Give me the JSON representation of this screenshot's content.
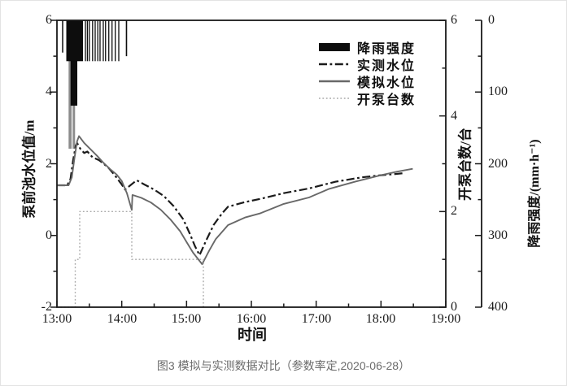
{
  "caption": "图3 模拟与实测数据对比（参数率定,2020-06-28）",
  "colors": {
    "axis": "#1a1a1a",
    "measured": "#1b1b1b",
    "simulated": "#686868",
    "pumps": "#a9a9a9",
    "rain": "#0d0d0d",
    "rain_light": "#8c8c8c"
  },
  "axes": {
    "x": {
      "title": "时间",
      "tick_labels": [
        "13:00",
        "14:00",
        "15:00",
        "16:00",
        "17:00",
        "18:00",
        "19:00"
      ],
      "tick_values": [
        0,
        1,
        2,
        3,
        4,
        5,
        6
      ],
      "minor_step": 0.5,
      "range": [
        0,
        6
      ]
    },
    "water": {
      "title": "泵前池水位值/m",
      "tick_labels": [
        "6",
        "4",
        "2",
        "0",
        "-2"
      ],
      "tick_values": [
        6,
        4,
        2,
        0,
        -2
      ],
      "range": [
        -2,
        6
      ]
    },
    "pumps": {
      "title": "开泵台数/台",
      "tick_labels": [
        "6",
        "4",
        "2",
        "0"
      ],
      "tick_values": [
        6,
        4,
        2,
        0
      ],
      "range": [
        0,
        6
      ]
    },
    "rain": {
      "title": "降雨强度/(mm·h⁻¹)",
      "tick_labels": [
        "0",
        "100",
        "200",
        "300",
        "400"
      ],
      "tick_values": [
        0,
        100,
        200,
        300,
        400
      ],
      "range": [
        0,
        400
      ],
      "inverted": true
    }
  },
  "legend": {
    "items": [
      {
        "label": "降雨强度",
        "type": "bar",
        "color": "#0d0d0d"
      },
      {
        "label": "实测水位",
        "type": "dashdot",
        "color": "#1b1b1b"
      },
      {
        "label": "模拟水位",
        "type": "solid",
        "color": "#686868"
      },
      {
        "label": "开泵台数",
        "type": "dotted",
        "color": "#a9a9a9"
      }
    ]
  },
  "chart_data": {
    "type": "line",
    "x_unit": "hours after 13:00",
    "title": "模拟与实测数据对比",
    "xlabel": "时间",
    "ylabel_left": "泵前池水位值/m",
    "ylabel_right1": "开泵台数/台",
    "ylabel_right2": "降雨强度/(mm·h⁻¹)",
    "xlim": [
      0,
      6
    ],
    "ylim_water": [
      -2,
      6
    ],
    "ylim_pumps": [
      0,
      6
    ],
    "ylim_rain": [
      0,
      400
    ],
    "series": [
      {
        "name": "实测水位",
        "axis": "water",
        "style": "dashdot",
        "color": "#1b1b1b",
        "points": [
          [
            0,
            1.4
          ],
          [
            0.16,
            1.4
          ],
          [
            0.21,
            1.58
          ],
          [
            0.25,
            2.1
          ],
          [
            0.29,
            2.5
          ],
          [
            0.31,
            2.58
          ],
          [
            0.36,
            2.42
          ],
          [
            0.42,
            2.3
          ],
          [
            0.47,
            2.34
          ],
          [
            0.55,
            2.18
          ],
          [
            0.65,
            2.1
          ],
          [
            0.72,
            2.0
          ],
          [
            0.8,
            1.88
          ],
          [
            0.9,
            1.66
          ],
          [
            1.0,
            1.42
          ],
          [
            1.05,
            1.28
          ],
          [
            1.12,
            1.38
          ],
          [
            1.23,
            1.54
          ],
          [
            1.35,
            1.42
          ],
          [
            1.5,
            1.28
          ],
          [
            1.65,
            1.1
          ],
          [
            1.8,
            0.82
          ],
          [
            1.95,
            0.45
          ],
          [
            2.05,
            0.05
          ],
          [
            2.13,
            -0.3
          ],
          [
            2.2,
            -0.55
          ],
          [
            2.3,
            -0.15
          ],
          [
            2.42,
            0.3
          ],
          [
            2.55,
            0.62
          ],
          [
            2.64,
            0.8
          ],
          [
            2.9,
            0.93
          ],
          [
            3.14,
            1.02
          ],
          [
            3.5,
            1.18
          ],
          [
            3.89,
            1.31
          ],
          [
            4.3,
            1.5
          ],
          [
            4.7,
            1.62
          ],
          [
            5.0,
            1.68
          ],
          [
            5.2,
            1.71
          ],
          [
            5.36,
            1.74
          ]
        ]
      },
      {
        "name": "模拟水位",
        "axis": "water",
        "style": "solid",
        "color": "#686868",
        "points": [
          [
            0,
            1.4
          ],
          [
            0.18,
            1.4
          ],
          [
            0.23,
            1.62
          ],
          [
            0.27,
            2.15
          ],
          [
            0.31,
            2.62
          ],
          [
            0.34,
            2.77
          ],
          [
            0.42,
            2.58
          ],
          [
            0.52,
            2.4
          ],
          [
            0.62,
            2.22
          ],
          [
            0.72,
            2.02
          ],
          [
            0.82,
            1.85
          ],
          [
            0.92,
            1.7
          ],
          [
            1.0,
            1.52
          ],
          [
            1.08,
            1.18
          ],
          [
            1.155,
            0.71
          ],
          [
            1.165,
            1.13
          ],
          [
            1.3,
            1.05
          ],
          [
            1.45,
            0.92
          ],
          [
            1.6,
            0.72
          ],
          [
            1.75,
            0.45
          ],
          [
            1.9,
            0.12
          ],
          [
            2.0,
            -0.18
          ],
          [
            2.1,
            -0.48
          ],
          [
            2.24,
            -0.8
          ],
          [
            2.35,
            -0.42
          ],
          [
            2.45,
            -0.1
          ],
          [
            2.55,
            0.1
          ],
          [
            2.64,
            0.29
          ],
          [
            2.9,
            0.5
          ],
          [
            3.14,
            0.62
          ],
          [
            3.5,
            0.88
          ],
          [
            3.89,
            1.06
          ],
          [
            4.2,
            1.3
          ],
          [
            4.6,
            1.5
          ],
          [
            5.0,
            1.68
          ],
          [
            5.25,
            1.78
          ],
          [
            5.49,
            1.86
          ]
        ]
      },
      {
        "name": "开泵台数",
        "axis": "pumps",
        "style": "dotted",
        "color": "#a9a9a9",
        "points": [
          [
            0,
            0
          ],
          [
            0.282,
            0
          ],
          [
            0.282,
            1
          ],
          [
            0.352,
            1
          ],
          [
            0.352,
            2
          ],
          [
            1.155,
            2
          ],
          [
            1.155,
            1
          ],
          [
            2.26,
            1
          ],
          [
            2.26,
            0
          ]
        ]
      }
    ],
    "rainfall_bars": {
      "name": "降雨强度",
      "axis": "rain",
      "unit": "mm·h⁻¹",
      "bars": [
        {
          "t": 0.088,
          "w": 1.5,
          "v": 45
        },
        {
          "t": 0.203,
          "w": 3.7,
          "v": 179,
          "shade": "light"
        },
        {
          "t": 0.261,
          "w": 3.0,
          "v": 179,
          "shade": "light"
        },
        {
          "t": 0.262,
          "w": 8.3,
          "v": 119
        },
        {
          "t": 0.273,
          "w": 20.5,
          "v": 57
        },
        {
          "t": 0.44,
          "w": 1.3,
          "v": 57
        },
        {
          "t": 0.47,
          "w": 1.3,
          "v": 57
        },
        {
          "t": 0.5,
          "w": 1.3,
          "v": 57
        },
        {
          "t": 0.55,
          "w": 1.3,
          "v": 57
        },
        {
          "t": 0.59,
          "w": 1.3,
          "v": 57
        },
        {
          "t": 0.63,
          "w": 1.3,
          "v": 57
        },
        {
          "t": 0.665,
          "w": 1.3,
          "v": 57
        },
        {
          "t": 0.715,
          "w": 1.3,
          "v": 57
        },
        {
          "t": 0.75,
          "w": 1.3,
          "v": 57
        },
        {
          "t": 0.8,
          "w": 1.3,
          "v": 57
        },
        {
          "t": 0.85,
          "w": 1.3,
          "v": 57
        },
        {
          "t": 0.9,
          "w": 1.3,
          "v": 57
        },
        {
          "t": 0.954,
          "w": 1.3,
          "v": 57
        },
        {
          "t": 1.073,
          "w": 1.6,
          "v": 50
        }
      ]
    }
  }
}
